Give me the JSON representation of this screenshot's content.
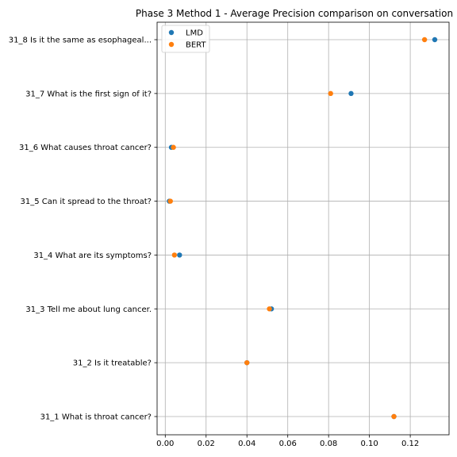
{
  "chart_data": {
    "type": "scatter",
    "title": "Phase 3 Method 1 - Average Precision comparison on conversation",
    "xlabel": "",
    "ylabel": "",
    "xlim": [
      -0.004,
      0.139
    ],
    "x_ticks": [
      "0.00",
      "0.02",
      "0.04",
      "0.06",
      "0.08",
      "0.10",
      "0.12"
    ],
    "x_tick_values": [
      0.0,
      0.02,
      0.04,
      0.06,
      0.08,
      0.1,
      0.12
    ],
    "categories": [
      "31_1 What is throat cancer?",
      "31_2 Is it treatable?",
      "31_3 Tell me about lung cancer.",
      "31_4 What are its symptoms?",
      "31_5 Can it spread to the throat?",
      "31_6 What causes throat cancer?",
      "31_7 What is the first sign of it?",
      "31_8 Is it the same as esophageal..."
    ],
    "series": [
      {
        "name": "LMD",
        "color": "#1f77b4",
        "values": [
          0.112,
          0.04,
          0.052,
          0.007,
          0.002,
          0.003,
          0.091,
          0.132
        ]
      },
      {
        "name": "BERT",
        "color": "#ff7f0e",
        "values": [
          0.112,
          0.04,
          0.051,
          0.0045,
          0.0025,
          0.004,
          0.081,
          0.127
        ]
      }
    ],
    "grid": true,
    "legend_position": "top-left"
  }
}
